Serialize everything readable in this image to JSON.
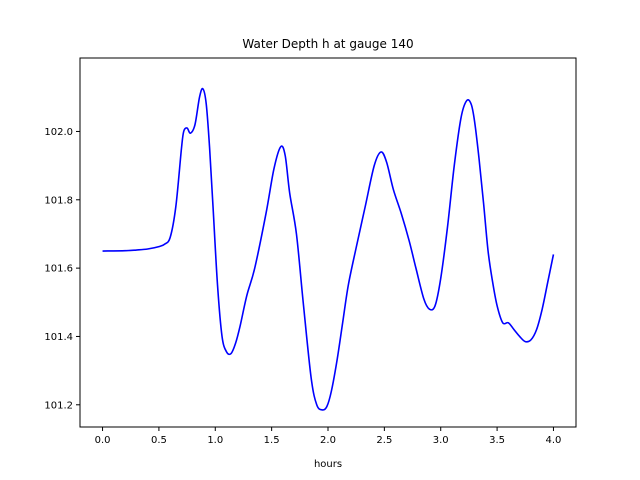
{
  "chart_data": {
    "type": "line",
    "title": "Water Depth h at gauge 140",
    "xlabel": "hours",
    "ylabel": "",
    "xlim": [
      -0.2,
      4.2
    ],
    "ylim": [
      101.135,
      102.215
    ],
    "xticks": [
      0.0,
      0.5,
      1.0,
      1.5,
      2.0,
      2.5,
      3.0,
      3.5,
      4.0
    ],
    "xtick_labels": [
      "0.0",
      "0.5",
      "1.0",
      "1.5",
      "2.0",
      "2.5",
      "3.0",
      "3.5",
      "4.0"
    ],
    "yticks": [
      101.2,
      101.4,
      101.6,
      101.8,
      102.0
    ],
    "ytick_labels": [
      "101.2",
      "101.4",
      "101.6",
      "101.8",
      "102.0"
    ],
    "grid": false,
    "series": [
      {
        "color": "#0000ff",
        "x": [
          0.0,
          0.2,
          0.3,
          0.4,
          0.5,
          0.55,
          0.6,
          0.65,
          0.7,
          0.72,
          0.75,
          0.78,
          0.82,
          0.86,
          0.89,
          0.92,
          0.95,
          0.98,
          1.02,
          1.06,
          1.1,
          1.14,
          1.18,
          1.22,
          1.28,
          1.35,
          1.45,
          1.52,
          1.58,
          1.62,
          1.66,
          1.72,
          1.78,
          1.85,
          1.9,
          1.95,
          1.99,
          2.03,
          2.08,
          2.13,
          2.18,
          2.25,
          2.33,
          2.41,
          2.47,
          2.52,
          2.58,
          2.65,
          2.72,
          2.78,
          2.85,
          2.9,
          2.95,
          3.0,
          3.06,
          3.12,
          3.18,
          3.23,
          3.27,
          3.3,
          3.34,
          3.38,
          3.42,
          3.46,
          3.5,
          3.55,
          3.6,
          3.65,
          3.7,
          3.75,
          3.8,
          3.85,
          3.9,
          3.95,
          4.0
        ],
        "y": [
          101.65,
          101.651,
          101.653,
          101.656,
          101.663,
          101.67,
          101.69,
          101.78,
          101.95,
          102.0,
          102.01,
          101.995,
          102.02,
          102.1,
          102.125,
          102.08,
          101.95,
          101.78,
          101.55,
          101.4,
          101.355,
          101.35,
          101.38,
          101.43,
          101.52,
          101.6,
          101.76,
          101.89,
          101.955,
          101.93,
          101.82,
          101.7,
          101.5,
          101.28,
          101.2,
          101.185,
          101.195,
          101.24,
          101.33,
          101.44,
          101.55,
          101.66,
          101.78,
          101.9,
          101.94,
          101.91,
          101.83,
          101.76,
          101.68,
          101.6,
          101.51,
          101.48,
          101.49,
          101.57,
          101.72,
          101.9,
          102.04,
          102.09,
          102.08,
          102.03,
          101.92,
          101.79,
          101.65,
          101.56,
          101.49,
          101.44,
          101.44,
          101.42,
          101.4,
          101.385,
          101.39,
          101.42,
          101.48,
          101.56,
          101.64
        ]
      }
    ]
  }
}
